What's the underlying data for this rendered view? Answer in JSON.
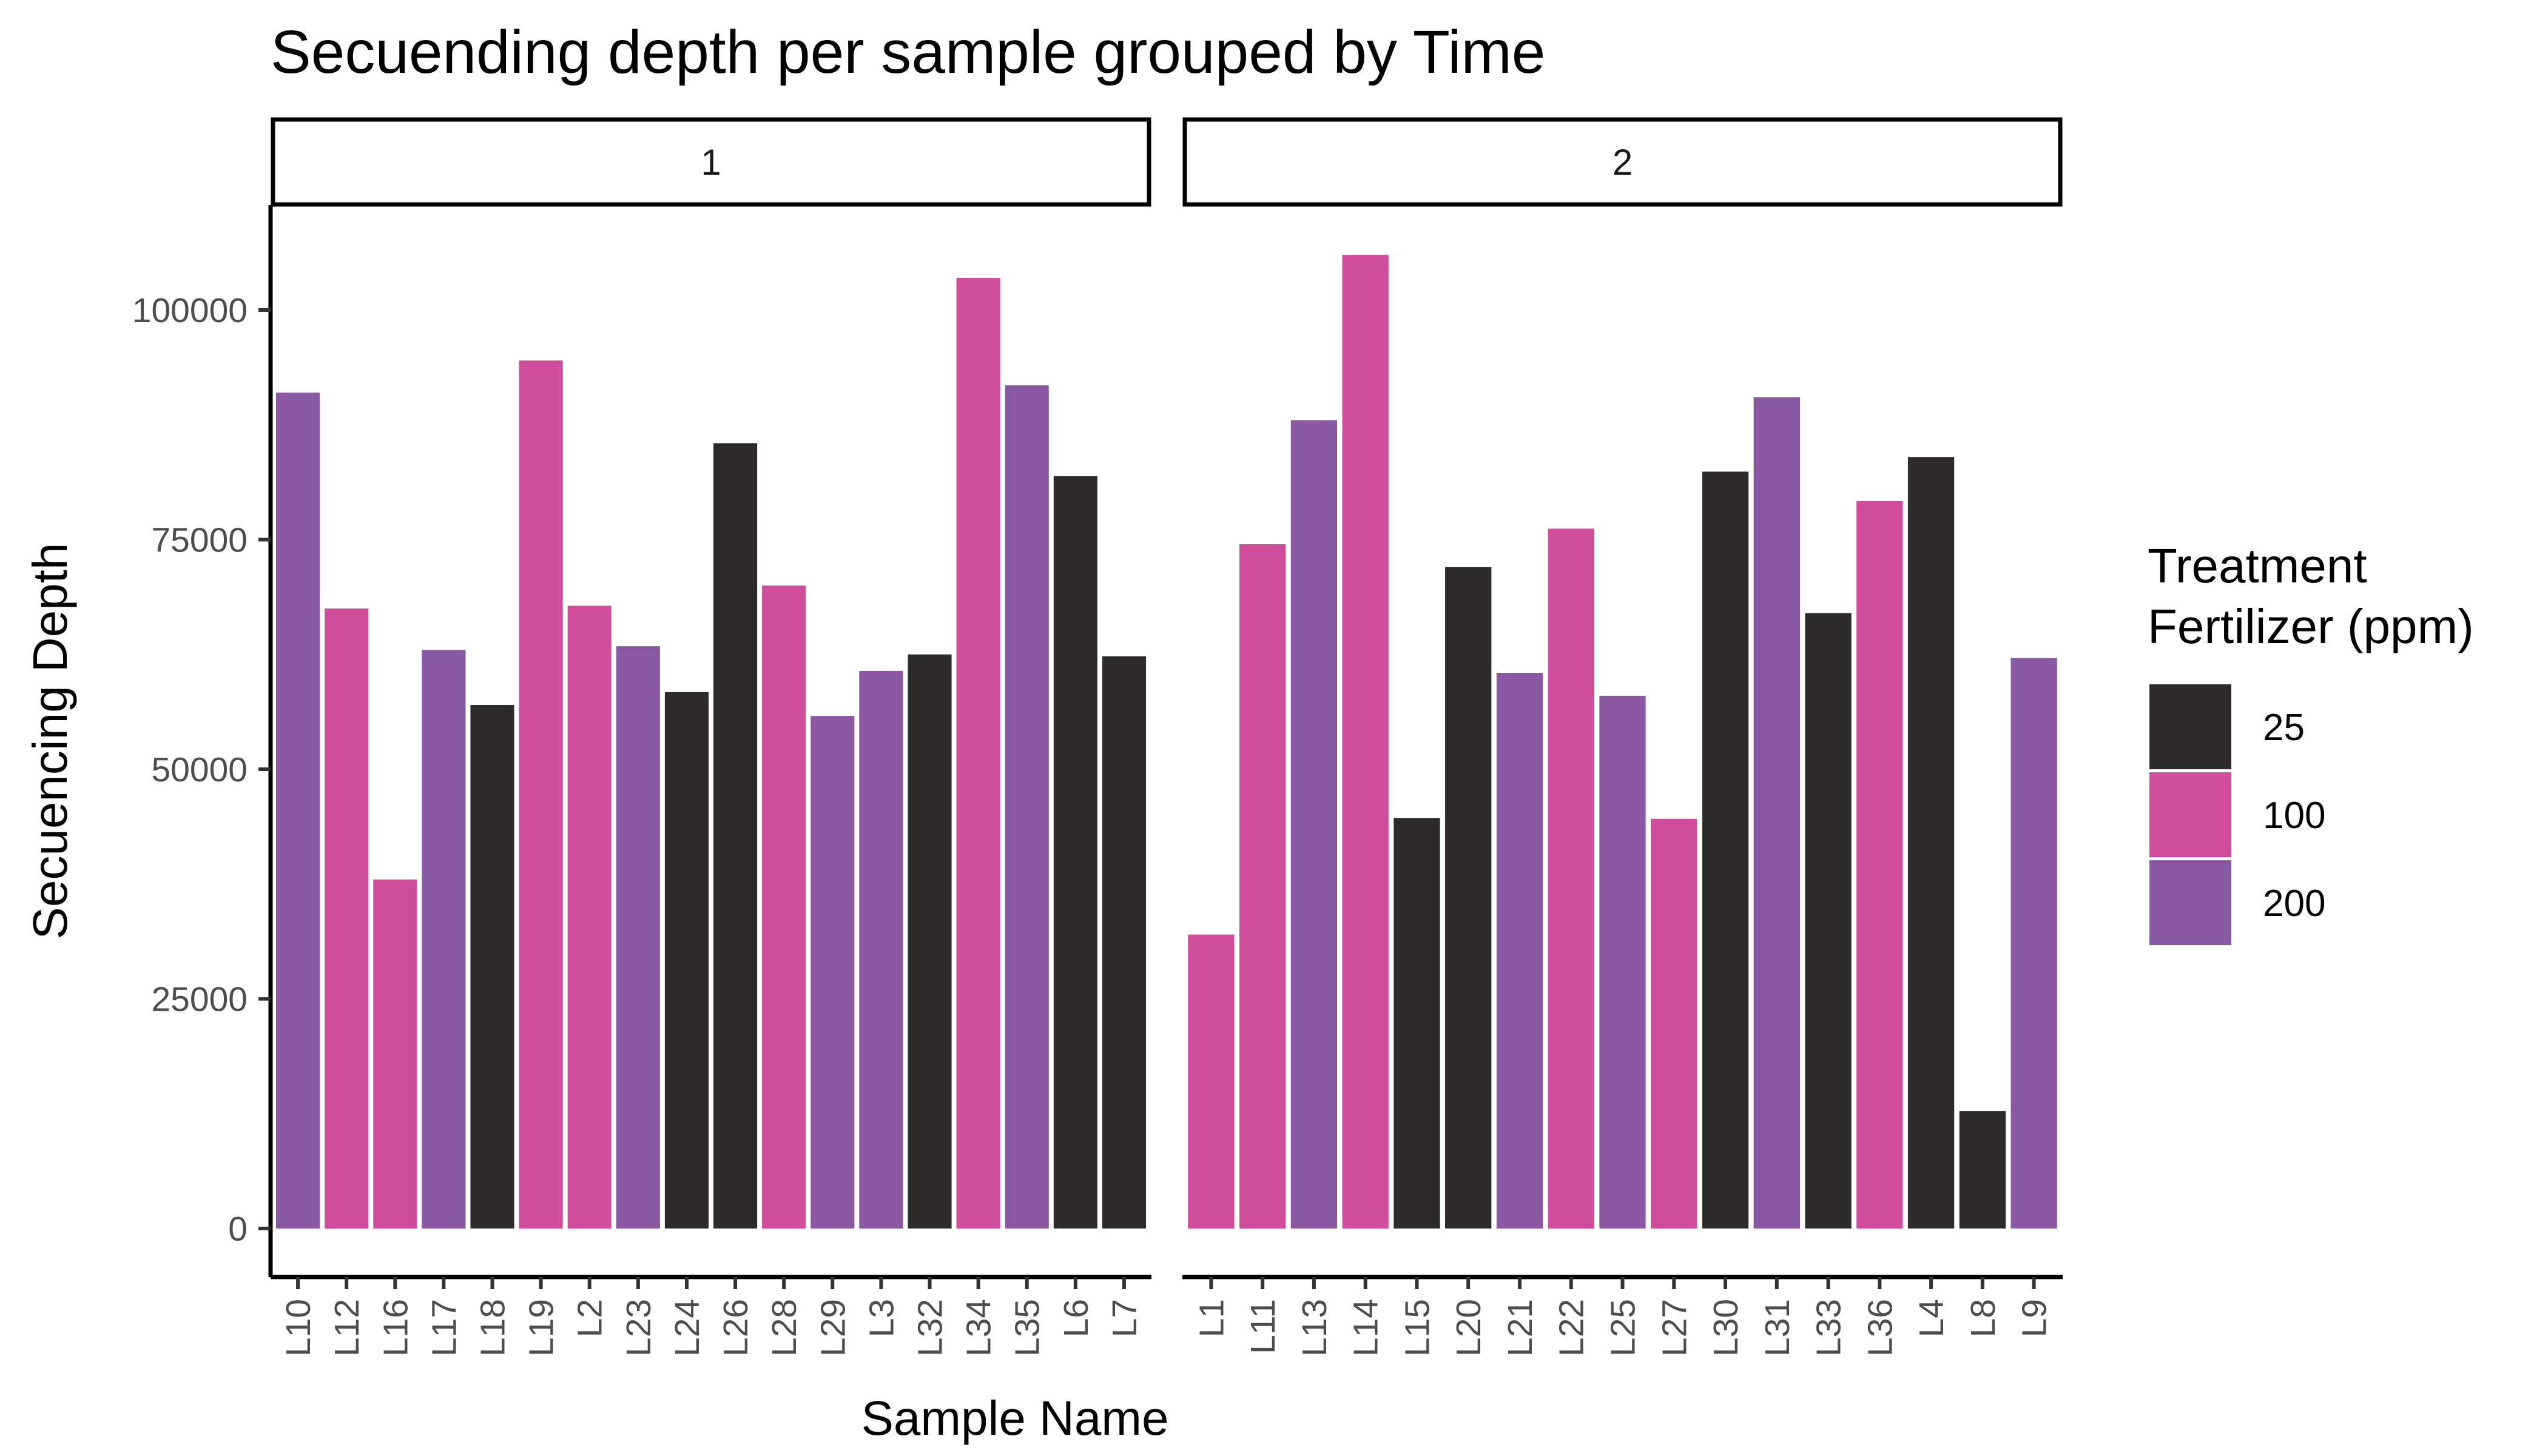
{
  "chart_data": {
    "type": "bar",
    "title": "Secuending depth per sample grouped by Time",
    "xlabel": "Sample Name",
    "ylabel": "Secuencing Depth",
    "ylim": [
      0,
      112000
    ],
    "yticks": [
      0,
      25000,
      50000,
      75000,
      100000
    ],
    "grid": false,
    "legend": {
      "title": [
        "Treatment",
        "Fertilizer (ppm)"
      ],
      "placement": "right",
      "entries": [
        {
          "label": "25",
          "color": "#2d2a2b"
        },
        {
          "label": "100",
          "color": "#cf4d9a"
        },
        {
          "label": "200",
          "color": "#8a57a3"
        }
      ]
    },
    "facets": [
      {
        "label": "1",
        "categories": [
          "L10",
          "L12",
          "L16",
          "L17",
          "L18",
          "L19",
          "L2",
          "L23",
          "L24",
          "L26",
          "L28",
          "L29",
          "L3",
          "L32",
          "L34",
          "L35",
          "L6",
          "L7"
        ],
        "values": [
          91000,
          67500,
          38000,
          63000,
          57000,
          94500,
          67800,
          63400,
          58400,
          85500,
          70000,
          55800,
          60700,
          62500,
          103500,
          91800,
          81900,
          62300
        ],
        "treatment": [
          "200",
          "100",
          "100",
          "200",
          "25",
          "100",
          "100",
          "200",
          "25",
          "25",
          "100",
          "200",
          "200",
          "25",
          "100",
          "200",
          "25",
          "25"
        ]
      },
      {
        "label": "2",
        "categories": [
          "L1",
          "L11",
          "L13",
          "L14",
          "L15",
          "L20",
          "L21",
          "L22",
          "L25",
          "L27",
          "L30",
          "L31",
          "L33",
          "L36",
          "L4",
          "L8",
          "L9"
        ],
        "values": [
          32000,
          74500,
          88000,
          106000,
          44700,
          72000,
          60500,
          76200,
          58000,
          44600,
          82400,
          90500,
          67000,
          79200,
          84000,
          12800,
          62100
        ],
        "treatment": [
          "100",
          "100",
          "200",
          "100",
          "25",
          "25",
          "200",
          "100",
          "200",
          "100",
          "25",
          "200",
          "25",
          "100",
          "25",
          "25",
          "200"
        ]
      }
    ]
  }
}
